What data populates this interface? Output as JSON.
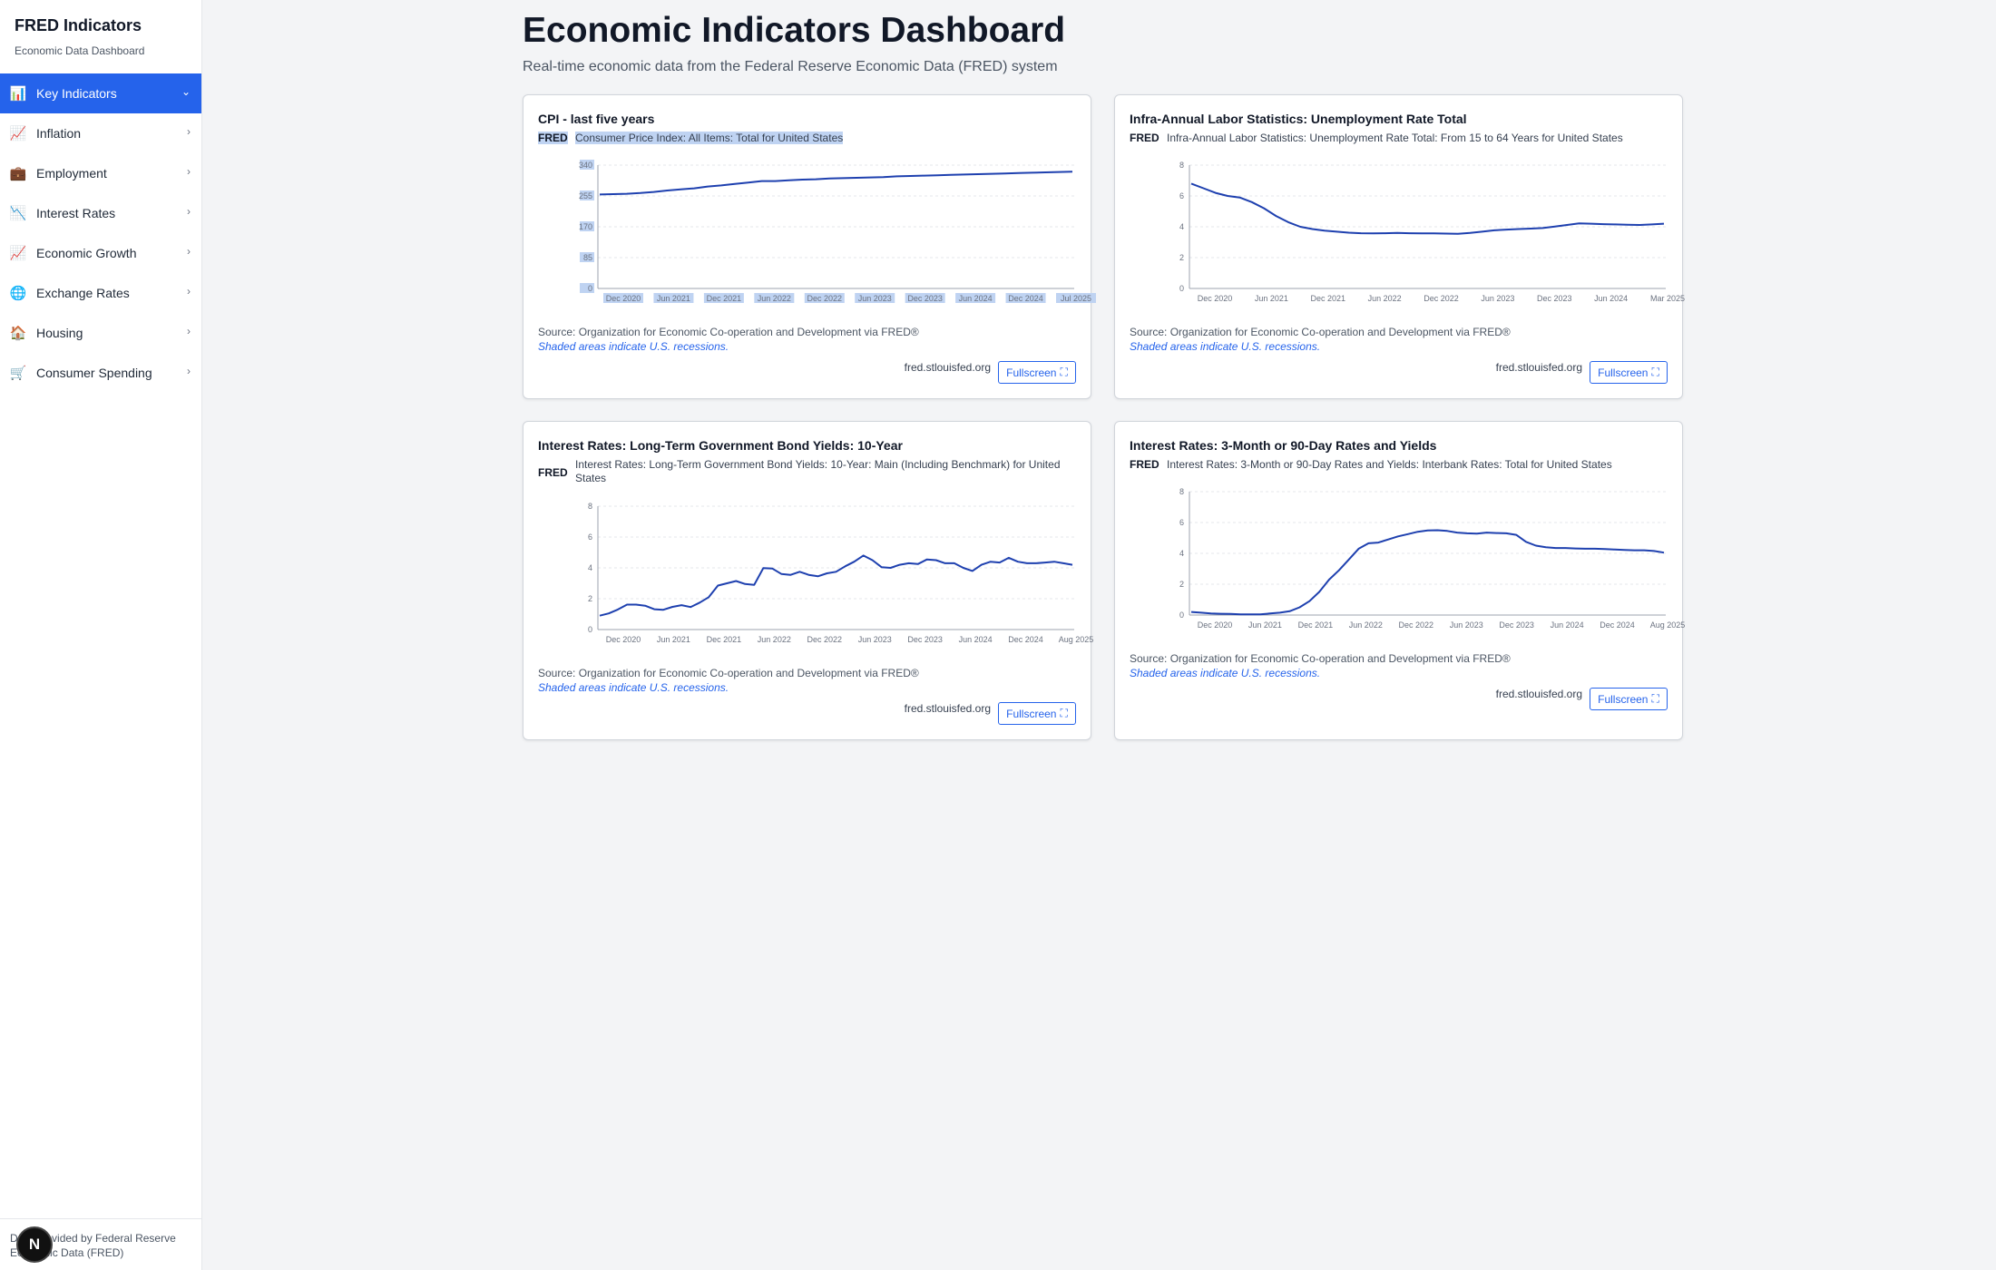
{
  "sidebar": {
    "title": "FRED Indicators",
    "subtitle": "Economic Data Dashboard",
    "items": [
      {
        "label": "Key Indicators",
        "icon": "bar-chart-icon",
        "glyph": "📊",
        "chevron": "⌄",
        "active": true
      },
      {
        "label": "Inflation",
        "icon": "chart-increasing-icon",
        "glyph": "📈",
        "chevron": "›"
      },
      {
        "label": "Employment",
        "icon": "briefcase-icon",
        "glyph": "💼",
        "chevron": "›"
      },
      {
        "label": "Interest Rates",
        "icon": "chart-decreasing-icon",
        "glyph": "📉",
        "chevron": "›"
      },
      {
        "label": "Economic Growth",
        "icon": "chart-increasing-icon",
        "glyph": "📈",
        "chevron": "›"
      },
      {
        "label": "Exchange Rates",
        "icon": "globe-icon",
        "glyph": "🌐",
        "chevron": "›"
      },
      {
        "label": "Housing",
        "icon": "house-icon",
        "glyph": "🏠",
        "chevron": "›"
      },
      {
        "label": "Consumer Spending",
        "icon": "shopping-cart-icon",
        "glyph": "🛒",
        "chevron": "›"
      }
    ],
    "footer": "Data provided by Federal Reserve Economic Data (FRED)",
    "badge": "N"
  },
  "header": {
    "title": "Economic Indicators Dashboard",
    "subtitle": "Real-time economic data from the Federal Reserve Economic Data (FRED) system"
  },
  "cards": [
    {
      "title": "CPI - last five years",
      "fred": "FRED",
      "description": "Consumer Price Index: All Items: Total for United States",
      "source": "Source: Organization for Economic Co-operation and Development via FRED®",
      "recession": "Shaded areas indicate U.S. recessions.",
      "domain": "fred.stlouisfed.org",
      "fullscreen": "Fullscreen",
      "fullscreen_icon": "⛶"
    },
    {
      "title": "Infra-Annual Labor Statistics: Unemployment Rate Total",
      "fred": "FRED",
      "description": "Infra-Annual Labor Statistics: Unemployment Rate Total: From 15 to 64 Years for United States",
      "source": "Source: Organization for Economic Co-operation and Development via FRED®",
      "recession": "Shaded areas indicate U.S. recessions.",
      "domain": "fred.stlouisfed.org",
      "fullscreen": "Fullscreen",
      "fullscreen_icon": "⛶"
    },
    {
      "title": "Interest Rates: Long-Term Government Bond Yields: 10-Year",
      "fred": "FRED",
      "description": "Interest Rates: Long-Term Government Bond Yields: 10-Year: Main (Including Benchmark) for United States",
      "source": "Source: Organization for Economic Co-operation and Development via FRED®",
      "recession": "Shaded areas indicate U.S. recessions.",
      "domain": "fred.stlouisfed.org",
      "fullscreen": "Fullscreen",
      "fullscreen_icon": "⛶"
    },
    {
      "title": "Interest Rates: 3-Month or 90-Day Rates and Yields",
      "fred": "FRED",
      "description": "Interest Rates: 3-Month or 90-Day Rates and Yields: Interbank Rates: Total for United States",
      "source": "Source: Organization for Economic Co-operation and Development via FRED®",
      "recession": "Shaded areas indicate U.S. recessions.",
      "domain": "fred.stlouisfed.org",
      "fullscreen": "Fullscreen",
      "fullscreen_icon": "⛶"
    }
  ],
  "chart_data": [
    {
      "type": "line",
      "title": "CPI - last five years",
      "color": "#1e40af",
      "ylim": [
        0,
        340
      ],
      "yticks": [
        0,
        85,
        170,
        255,
        340
      ],
      "grid": true,
      "xticks": [
        "Dec 2020",
        "Jun 2021",
        "Dec 2021",
        "Jun 2022",
        "Dec 2022",
        "Jun 2023",
        "Dec 2023",
        "Jun 2024",
        "Dec 2024",
        "Jul 2025"
      ],
      "series": [
        {
          "values": [
            259,
            260,
            261,
            263,
            266,
            270,
            273,
            276,
            281,
            284,
            288,
            292,
            296,
            296,
            298,
            300,
            301,
            303,
            304,
            305,
            306,
            307,
            309,
            310,
            311,
            312,
            313,
            314,
            315,
            316,
            317,
            318,
            319,
            320,
            321,
            322
          ]
        }
      ]
    },
    {
      "type": "line",
      "title": "Infra-Annual Labor Statistics: Unemployment Rate Total",
      "color": "#1e40af",
      "ylim": [
        0,
        8
      ],
      "yticks": [
        0,
        2,
        4,
        6,
        8
      ],
      "grid": true,
      "xticks": [
        "Dec 2020",
        "Jun 2021",
        "Dec 2021",
        "Jun 2022",
        "Dec 2022",
        "Jun 2023",
        "Dec 2023",
        "Jun 2024",
        "Mar 2025"
      ],
      "series": [
        {
          "values": [
            6.8,
            6.5,
            6.2,
            6.0,
            5.9,
            5.6,
            5.2,
            4.7,
            4.3,
            4.0,
            3.85,
            3.75,
            3.68,
            3.62,
            3.58,
            3.57,
            3.58,
            3.6,
            3.58,
            3.57,
            3.57,
            3.56,
            3.55,
            3.6,
            3.68,
            3.77,
            3.82,
            3.85,
            3.88,
            3.92,
            4.02,
            4.12,
            4.22,
            4.2,
            4.17,
            4.15,
            4.13,
            4.12,
            4.15,
            4.2
          ]
        }
      ]
    },
    {
      "type": "line",
      "title": "Interest Rates: Long-Term Government Bond Yields: 10-Year",
      "color": "#1e40af",
      "ylim": [
        0,
        8
      ],
      "yticks": [
        0,
        2,
        4,
        6,
        8
      ],
      "grid": true,
      "xticks": [
        "Dec 2020",
        "Jun 2021",
        "Dec 2021",
        "Jun 2022",
        "Dec 2022",
        "Jun 2023",
        "Dec 2023",
        "Jun 2024",
        "Dec 2024",
        "Aug 2025"
      ],
      "series": [
        {
          "values": [
            0.9,
            1.05,
            1.3,
            1.62,
            1.62,
            1.55,
            1.32,
            1.28,
            1.47,
            1.58,
            1.46,
            1.75,
            2.1,
            2.85,
            3.0,
            3.15,
            2.95,
            2.9,
            3.98,
            3.95,
            3.6,
            3.55,
            3.75,
            3.55,
            3.45,
            3.65,
            3.75,
            4.1,
            4.4,
            4.8,
            4.5,
            4.05,
            4.0,
            4.2,
            4.3,
            4.25,
            4.55,
            4.5,
            4.3,
            4.3,
            4.0,
            3.8,
            4.2,
            4.4,
            4.35,
            4.65,
            4.4,
            4.3,
            4.3,
            4.35,
            4.4,
            4.3,
            4.2
          ]
        }
      ]
    },
    {
      "type": "line",
      "title": "Interest Rates: 3-Month or 90-Day Rates and Yields",
      "color": "#1e40af",
      "ylim": [
        0,
        8
      ],
      "yticks": [
        0,
        2,
        4,
        6,
        8
      ],
      "grid": true,
      "xticks": [
        "Dec 2020",
        "Jun 2021",
        "Dec 2021",
        "Jun 2022",
        "Dec 2022",
        "Jun 2023",
        "Dec 2023",
        "Jun 2024",
        "Dec 2024",
        "Aug 2025"
      ],
      "series": [
        {
          "values": [
            0.2,
            0.15,
            0.1,
            0.08,
            0.07,
            0.05,
            0.05,
            0.05,
            0.1,
            0.15,
            0.25,
            0.5,
            0.9,
            1.5,
            2.3,
            2.9,
            3.6,
            4.3,
            4.65,
            4.7,
            4.9,
            5.1,
            5.25,
            5.4,
            5.48,
            5.5,
            5.45,
            5.35,
            5.3,
            5.28,
            5.35,
            5.32,
            5.3,
            5.2,
            4.75,
            4.5,
            4.4,
            4.35,
            4.35,
            4.32,
            4.3,
            4.3,
            4.28,
            4.25,
            4.22,
            4.2,
            4.2,
            4.15,
            4.05
          ]
        }
      ]
    }
  ]
}
